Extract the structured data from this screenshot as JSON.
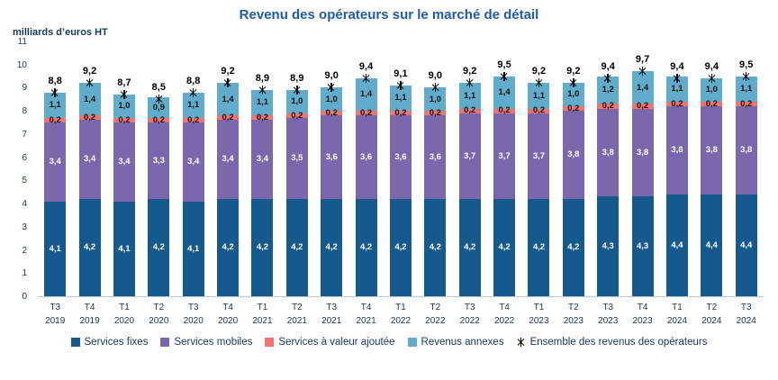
{
  "title": "Revenu des opérateurs sur le marché de détail",
  "y_axis_unit": "milliards d’euros HT",
  "chart_data": {
    "type": "bar",
    "stacked": true,
    "title": "Revenu des opérateurs sur le marché de détail",
    "ylabel": "milliards d’euros HT",
    "ylim": [
      0,
      11
    ],
    "ytick_step": 1,
    "grid": false,
    "legend_position": "bottom",
    "categories": [
      {
        "q": "T3",
        "y": "2019"
      },
      {
        "q": "T4",
        "y": "2019"
      },
      {
        "q": "T1",
        "y": "2020"
      },
      {
        "q": "T2",
        "y": "2020"
      },
      {
        "q": "T3",
        "y": "2020"
      },
      {
        "q": "T4",
        "y": "2020"
      },
      {
        "q": "T1",
        "y": "2021"
      },
      {
        "q": "T2",
        "y": "2021"
      },
      {
        "q": "T3",
        "y": "2021"
      },
      {
        "q": "T4",
        "y": "2021"
      },
      {
        "q": "T1",
        "y": "2022"
      },
      {
        "q": "T2",
        "y": "2022"
      },
      {
        "q": "T3",
        "y": "2022"
      },
      {
        "q": "T4",
        "y": "2022"
      },
      {
        "q": "T1",
        "y": "2023"
      },
      {
        "q": "T2",
        "y": "2023"
      },
      {
        "q": "T3",
        "y": "2023"
      },
      {
        "q": "T4",
        "y": "2023"
      },
      {
        "q": "T1",
        "y": "2024"
      },
      {
        "q": "T2",
        "y": "2024"
      },
      {
        "q": "T3",
        "y": "2024"
      }
    ],
    "series": [
      {
        "name": "Services fixes",
        "color": "#165A8D",
        "label_color": "#FFFFFF",
        "values": [
          4.1,
          4.2,
          4.1,
          4.2,
          4.1,
          4.2,
          4.2,
          4.2,
          4.2,
          4.2,
          4.2,
          4.2,
          4.2,
          4.2,
          4.2,
          4.2,
          4.3,
          4.3,
          4.4,
          4.4,
          4.4
        ]
      },
      {
        "name": "Services mobiles",
        "color": "#7B68AC",
        "label_color": "#FFFFFF",
        "values": [
          3.4,
          3.4,
          3.4,
          3.3,
          3.4,
          3.4,
          3.4,
          3.5,
          3.6,
          3.6,
          3.6,
          3.6,
          3.7,
          3.7,
          3.7,
          3.8,
          3.8,
          3.8,
          3.8,
          3.8,
          3.8
        ]
      },
      {
        "name": "Services à valeur ajoutée",
        "color": "#F2736F",
        "label_color": "#111111",
        "values": [
          0.2,
          0.2,
          0.2,
          0.2,
          0.2,
          0.2,
          0.2,
          0.2,
          0.2,
          0.2,
          0.2,
          0.2,
          0.2,
          0.2,
          0.2,
          0.2,
          0.2,
          0.2,
          0.2,
          0.2,
          0.2
        ]
      },
      {
        "name": "Revenus annexes",
        "color": "#62ACCB",
        "label_color": "#111111",
        "values": [
          1.1,
          1.4,
          1.0,
          0.9,
          1.1,
          1.4,
          1.1,
          1.0,
          1.0,
          1.4,
          1.1,
          1.0,
          1.1,
          1.4,
          1.1,
          1.0,
          1.2,
          1.4,
          1.1,
          1.0,
          1.1
        ]
      }
    ],
    "total_series": {
      "name": "Ensemble des revenus des opérateurs",
      "marker": "asterisk",
      "color": "#000000",
      "values": [
        8.8,
        9.2,
        8.7,
        8.5,
        8.8,
        9.2,
        8.9,
        8.9,
        9.0,
        9.4,
        9.1,
        9.0,
        9.2,
        9.5,
        9.2,
        9.2,
        9.4,
        9.7,
        9.4,
        9.4,
        9.5
      ]
    }
  },
  "colors": {
    "title": "#1F5BA8",
    "axis_text": "#17375E",
    "total_label": "#000000"
  }
}
